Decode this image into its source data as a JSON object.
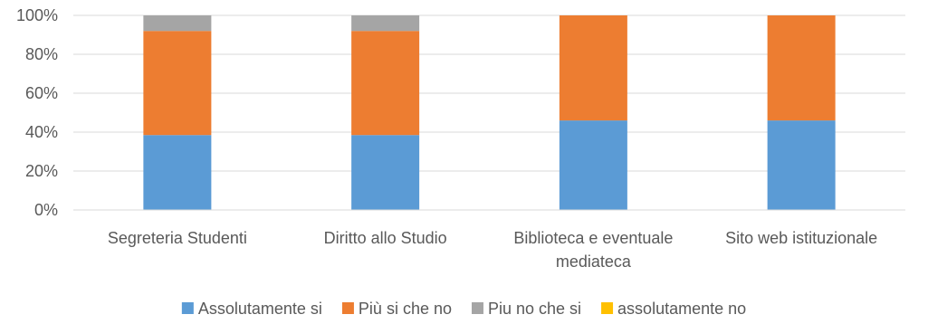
{
  "chart_data": {
    "type": "bar",
    "stacked": true,
    "percent": true,
    "categories": [
      [
        "Segreteria Studenti"
      ],
      [
        "Diritto allo Studio"
      ],
      [
        "Biblioteca e eventuale",
        "mediateca"
      ],
      [
        "Sito web istituzionale"
      ]
    ],
    "series": [
      {
        "name": "Assolutamente si",
        "color": "#5b9bd5",
        "values": [
          38.5,
          38.5,
          46,
          46
        ]
      },
      {
        "name": "Più si che no",
        "color": "#ed7d31",
        "values": [
          53.5,
          53.5,
          54,
          54
        ]
      },
      {
        "name": "Piu no che si",
        "color": "#a5a5a5",
        "values": [
          8,
          8,
          0,
          0
        ]
      },
      {
        "name": "assolutamente no",
        "color": "#ffc000",
        "values": [
          0,
          0,
          0,
          0
        ]
      }
    ],
    "ylim": [
      0,
      100
    ],
    "yticks": [
      "0%",
      "20%",
      "40%",
      "60%",
      "80%",
      "100%"
    ],
    "grid": true,
    "legend": "bottom"
  }
}
